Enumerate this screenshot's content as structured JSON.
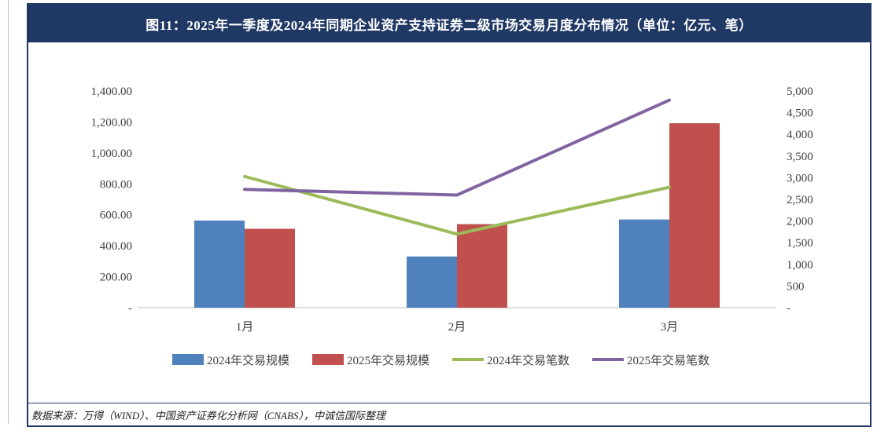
{
  "title": "图11：2025年一季度及2024年同期企业资产支持证券二级市场交易月度分布情况（单位：亿元、笔）",
  "source": "数据来源：万得（WIND）、中国资产证券化分析网（CNABS），中诚信国际整理",
  "chart_data": {
    "type": "bar",
    "categories": [
      "1月",
      "2月",
      "3月"
    ],
    "left_axis": {
      "ylim": [
        0,
        1400
      ],
      "ticks": [
        "-",
        "200.00",
        "400.00",
        "600.00",
        "800.00",
        "1,000.00",
        "1,200.00",
        "1,400.00"
      ]
    },
    "right_axis": {
      "ylim": [
        0,
        5000
      ],
      "ticks": [
        "-",
        "500",
        "1,000",
        "1,500",
        "2,000",
        "2,500",
        "3,000",
        "3,500",
        "4,000",
        "4,500",
        "5,000"
      ]
    },
    "series": [
      {
        "name": "2024年交易规模",
        "type": "bar",
        "axis": "left",
        "color": "#4f81bd",
        "values": [
          563,
          331,
          570
        ]
      },
      {
        "name": "2025年交易规模",
        "type": "bar",
        "axis": "left",
        "color": "#c0504d",
        "values": [
          510,
          540,
          1192
        ]
      },
      {
        "name": "2024年交易笔数",
        "type": "line",
        "axis": "right",
        "color": "#9bbb59",
        "values": [
          3030,
          1700,
          2780
        ]
      },
      {
        "name": "2025年交易笔数",
        "type": "line",
        "axis": "right",
        "color": "#8064a2",
        "values": [
          2730,
          2600,
          4790
        ]
      }
    ],
    "legend_position": "bottom",
    "grid": false
  }
}
